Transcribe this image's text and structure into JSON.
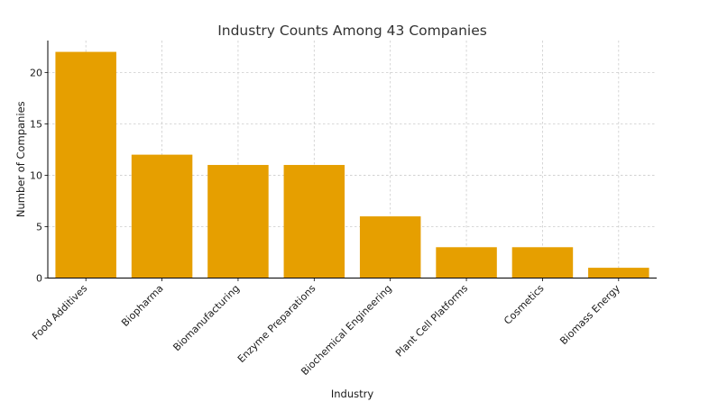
{
  "chart_data": {
    "type": "bar",
    "title": "Industry Counts Among 43 Companies",
    "xlabel": "Industry",
    "ylabel": "Number of Companies",
    "categories": [
      "Food Additives",
      "Biopharma",
      "Biomanufacturing",
      "Enzyme Preparations",
      "Biochemical Engineering",
      "Plant Cell Platforms",
      "Cosmetics",
      "Biomass Energy"
    ],
    "values": [
      22,
      12,
      11,
      11,
      6,
      3,
      3,
      1
    ],
    "ylim": [
      0,
      23.1
    ],
    "yticks": [
      0,
      5,
      10,
      15,
      20
    ],
    "grid": true,
    "bar_color": "#E69F00"
  }
}
